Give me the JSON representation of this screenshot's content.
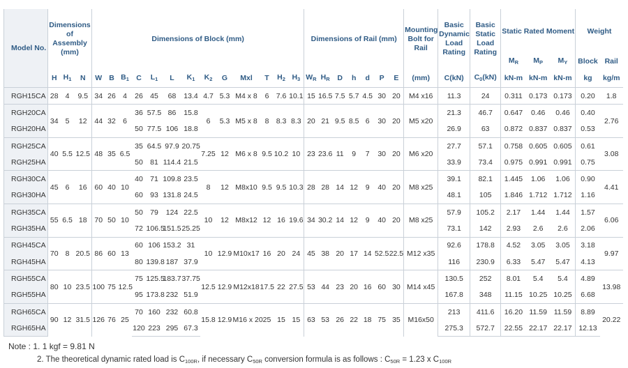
{
  "header": {
    "model_no": "Model No.",
    "assembly": {
      "title": "Dimensions of Assembly (mm)",
      "columns": [
        [
          "H"
        ],
        [
          "H",
          {
            "sub": "1"
          }
        ],
        [
          "N"
        ]
      ]
    },
    "block": {
      "title": "Dimensions of Block (mm)",
      "columns": [
        [
          "W"
        ],
        [
          "B"
        ],
        [
          "B",
          {
            "sub": "1"
          }
        ],
        [
          "C"
        ],
        [
          "L",
          {
            "sub": "1"
          }
        ],
        [
          "L"
        ],
        [
          "K",
          {
            "sub": "1"
          }
        ],
        [
          "K",
          {
            "sub": "2"
          }
        ],
        [
          "G"
        ],
        [
          "Mxl"
        ],
        [
          "T"
        ],
        [
          "H",
          {
            "sub": "2"
          }
        ],
        [
          "H",
          {
            "sub": "3"
          }
        ]
      ]
    },
    "rail": {
      "title": "Dimensions of Rail (mm)",
      "columns": [
        [
          "W",
          {
            "sub": "R"
          }
        ],
        [
          "H",
          {
            "sub": "R"
          }
        ],
        [
          "D"
        ],
        [
          "h"
        ],
        [
          "d"
        ],
        [
          "P"
        ],
        [
          "E"
        ]
      ]
    },
    "mounting_bolt": {
      "title": "Mounting Bolt for Rail",
      "unit": [
        "(mm)"
      ]
    },
    "dynamic_load": {
      "title": "Basic Dynamic Load Rating",
      "unit": [
        "C(kN)"
      ]
    },
    "static_load": {
      "title": "Basic Static Load Rating",
      "unit": [
        "C",
        {
          "sub": "0"
        },
        "(kN)"
      ]
    },
    "moment": {
      "title": "Static Rated Moment",
      "columns": [
        {
          "name": [
            "M",
            {
              "sub": "R"
            }
          ],
          "unit": "kN-m"
        },
        {
          "name": [
            "M",
            {
              "sub": "P"
            }
          ],
          "unit": "kN-m"
        },
        {
          "name": [
            "M",
            {
              "sub": "Y"
            }
          ],
          "unit": "kN-m"
        }
      ]
    },
    "weight": {
      "title": "Weight",
      "columns": [
        {
          "name": [
            "Block"
          ],
          "unit": "kg"
        },
        {
          "name": [
            "Rail"
          ],
          "unit": "kg/m"
        }
      ]
    }
  },
  "groups": [
    {
      "models": [
        "RGH15CA"
      ],
      "cells": [
        "28",
        "4",
        "9.5",
        "34",
        "26",
        "4",
        "26",
        "45",
        "68",
        "13.4",
        "4.7",
        "5.3",
        "M4 x 8",
        "6",
        "7.6",
        "10.1",
        "15",
        "16.5",
        "7.5",
        "5.7",
        "4.5",
        "30",
        "20",
        "M4 x16",
        "11.3",
        "24",
        "0.311",
        "0.173",
        "0.173",
        "0.20",
        "1.8"
      ]
    },
    {
      "models": [
        "RGH20CA",
        "RGH20HA"
      ],
      "cells": [
        "34",
        "5",
        "12",
        "44",
        "32",
        "6",
        [
          "36",
          "50"
        ],
        [
          "57.5",
          "77.5"
        ],
        [
          "86",
          "106"
        ],
        [
          "15.8",
          "18.8"
        ],
        "6",
        "5.3",
        "M5 x 8",
        "8",
        "8.3",
        "8.3",
        "20",
        "21",
        "9.5",
        "8.5",
        "6",
        "30",
        "20",
        "M5 x20",
        [
          "21.3",
          "26.9"
        ],
        [
          "46.7",
          "63"
        ],
        [
          "0.647",
          "0.872"
        ],
        [
          "0.46",
          "0.837"
        ],
        [
          "0.46",
          "0.837"
        ],
        [
          "0.40",
          "0.53"
        ],
        "2.76"
      ]
    },
    {
      "models": [
        "RGH25CA",
        "RGH25HA"
      ],
      "cells": [
        "40",
        "5.5",
        "12.5",
        "48",
        "35",
        "6.5",
        [
          "35",
          "50"
        ],
        [
          "64.5",
          "81"
        ],
        [
          "97.9",
          "114.4"
        ],
        [
          "20.75",
          "21.5"
        ],
        "7.25",
        "12",
        "M6 x 8",
        "9.5",
        "10.2",
        "10",
        "23",
        "23.6",
        "11",
        "9",
        "7",
        "30",
        "20",
        "M6 x20",
        [
          "27.7",
          "33.9"
        ],
        [
          "57.1",
          "73.4"
        ],
        [
          "0.758",
          "0.975"
        ],
        [
          "0.605",
          "0.991"
        ],
        [
          "0.605",
          "0.991"
        ],
        [
          "0.61",
          "0.75"
        ],
        "3.08"
      ]
    },
    {
      "models": [
        "RGH30CA",
        "RGH30HA"
      ],
      "cells": [
        "45",
        "6",
        "16",
        "60",
        "40",
        "10",
        [
          "40",
          "60"
        ],
        [
          "71",
          "93"
        ],
        [
          "109.8",
          "131.8"
        ],
        [
          "23.5",
          "24.5"
        ],
        "8",
        "12",
        "M8x10",
        "9.5",
        "9.5",
        "10.3",
        "28",
        "28",
        "14",
        "12",
        "9",
        "40",
        "20",
        "M8 x25",
        [
          "39.1",
          "48.1"
        ],
        [
          "82.1",
          "105"
        ],
        [
          "1.445",
          "1.846"
        ],
        [
          "1.06",
          "1.712"
        ],
        [
          "1.06",
          "1.712"
        ],
        [
          "0.90",
          "1.16"
        ],
        "4.41"
      ]
    },
    {
      "models": [
        "RGH35CA",
        "RGH35HA"
      ],
      "cells": [
        "55",
        "6.5",
        "18",
        "70",
        "50",
        "10",
        [
          "50",
          "72"
        ],
        [
          "79",
          "106.5"
        ],
        [
          "124",
          "151.5"
        ],
        [
          "22.5",
          "25.25"
        ],
        "10",
        "12",
        "M8x12",
        "12",
        "16",
        "19.6",
        "34",
        "30.2",
        "14",
        "12",
        "9",
        "40",
        "20",
        "M8 x25",
        [
          "57.9",
          "73.1"
        ],
        [
          "105.2",
          "142"
        ],
        [
          "2.17",
          "2.93"
        ],
        [
          "1.44",
          "2.6"
        ],
        [
          "1.44",
          "2.6"
        ],
        [
          "1.57",
          "2.06"
        ],
        "6.06"
      ]
    },
    {
      "models": [
        "RGH45CA",
        "RGH45HA"
      ],
      "cells": [
        "70",
        "8",
        "20.5",
        "86",
        "60",
        "13",
        [
          "60",
          "80"
        ],
        [
          "106",
          "139.8"
        ],
        [
          "153.2",
          "187"
        ],
        [
          "31",
          "37.9"
        ],
        "10",
        "12.9",
        "M10x17",
        "16",
        "20",
        "24",
        "45",
        "38",
        "20",
        "17",
        "14",
        "52.5",
        "22.5",
        "M12 x35",
        [
          "92.6",
          "116"
        ],
        [
          "178.8",
          "230.9"
        ],
        [
          "4.52",
          "6.33"
        ],
        [
          "3.05",
          "5.47"
        ],
        [
          "3.05",
          "5.47"
        ],
        [
          "3.18",
          "4.13"
        ],
        "9.97"
      ]
    },
    {
      "models": [
        "RGH55CA",
        "RGH55HA"
      ],
      "cells": [
        "80",
        "10",
        "23.5",
        "100",
        "75",
        "12.5",
        [
          "75",
          "95"
        ],
        [
          "125.5",
          "173.8"
        ],
        [
          "183.7",
          "232"
        ],
        [
          "37.75",
          "51.9"
        ],
        "12.5",
        "12.9",
        "M12x18",
        "17.5",
        "22",
        "27.5",
        "53",
        "44",
        "23",
        "20",
        "16",
        "60",
        "30",
        "M14 x45",
        [
          "130.5",
          "167.8"
        ],
        [
          "252",
          "348"
        ],
        [
          "8.01",
          "11.15"
        ],
        [
          "5.4",
          "10.25"
        ],
        [
          "5.4",
          "10.25"
        ],
        [
          "4.89",
          "6.68"
        ],
        "13.98"
      ]
    },
    {
      "models": [
        "RGH65CA",
        "RGH65HA"
      ],
      "cells": [
        "90",
        "12",
        "31.5",
        "126",
        "76",
        "25",
        [
          "70",
          "120"
        ],
        [
          "160",
          "223"
        ],
        [
          "232",
          "295"
        ],
        [
          "60.8",
          "67.3"
        ],
        "15.8",
        "12.9",
        "M16 x 20",
        "25",
        "15",
        "15",
        "63",
        "53",
        "26",
        "22",
        "18",
        "75",
        "35",
        "M16x50",
        [
          "213",
          "275.3"
        ],
        [
          "411.6",
          "572.7"
        ],
        [
          "16.20",
          "22.55"
        ],
        [
          "11.59",
          "22.17"
        ],
        [
          "11.59",
          "22.17"
        ],
        [
          "8.89",
          "12.13"
        ],
        "20.22"
      ]
    }
  ],
  "notes": {
    "note1": "Note : 1. 1 kgf = 9.81 N",
    "note2": [
      "2. The theoretical dynamic rated load is C",
      {
        "sub": "100R"
      },
      ", if necessary C",
      {
        "sub": "50R"
      },
      " conversion formula is as follows : C",
      {
        "sub": "50R"
      },
      " = 1.23 x C",
      {
        "sub": "100R"
      }
    ]
  }
}
